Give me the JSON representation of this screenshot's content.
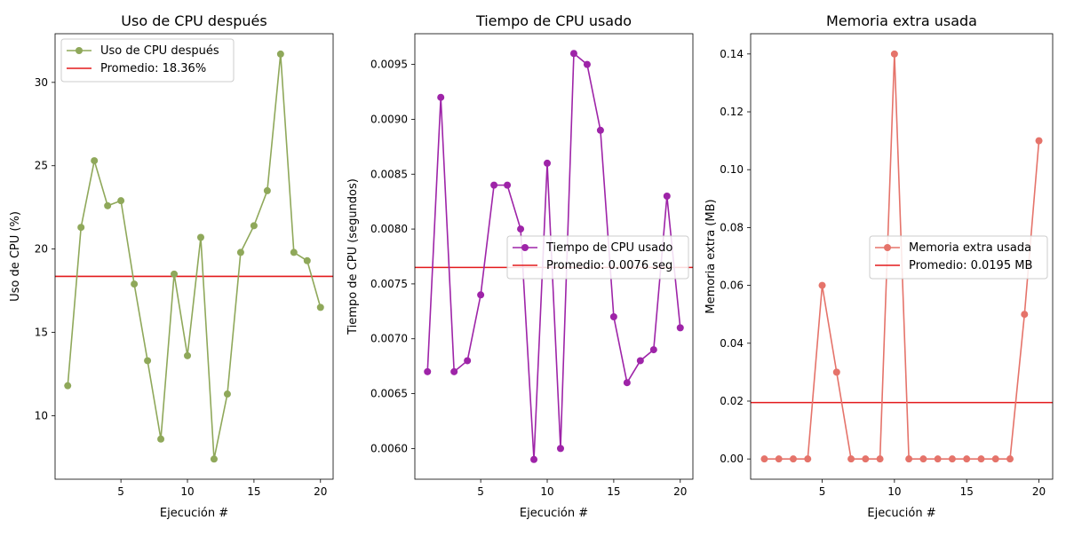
{
  "chart_data": [
    {
      "type": "line",
      "title": "Uso de CPU después",
      "xlabel": "Ejecución #",
      "ylabel": "Uso de CPU (%)",
      "xlim": [
        0.05,
        20.95
      ],
      "ylim": [
        6.19,
        32.92
      ],
      "xticks": [
        5,
        10,
        15,
        20
      ],
      "yticks": [
        10,
        15,
        20,
        25,
        30
      ],
      "ytick_labels": [
        "10",
        "15",
        "20",
        "25",
        "30"
      ],
      "legend_position": "upper left",
      "x": [
        1,
        2,
        3,
        4,
        5,
        6,
        7,
        8,
        9,
        10,
        11,
        12,
        13,
        14,
        15,
        16,
        17,
        18,
        19,
        20
      ],
      "series": [
        {
          "name": "Uso de CPU después",
          "color": "#8fa85a",
          "values": [
            11.8,
            21.3,
            25.3,
            22.6,
            22.9,
            17.9,
            13.3,
            8.6,
            18.5,
            13.6,
            20.7,
            7.4,
            11.3,
            19.8,
            21.4,
            23.5,
            31.7,
            19.8,
            19.3,
            16.5
          ]
        }
      ],
      "reference_line": {
        "label": "Promedio: 18.36%",
        "value": 18.36,
        "color": "#e31a1c"
      }
    },
    {
      "type": "line",
      "title": "Tiempo de CPU usado",
      "xlabel": "Ejecución #",
      "ylabel": "Tiempo de CPU (segundos)",
      "xlim": [
        0.05,
        20.95
      ],
      "ylim": [
        0.00572,
        0.00978
      ],
      "xticks": [
        5,
        10,
        15,
        20
      ],
      "yticks": [
        0.006,
        0.0065,
        0.007,
        0.0075,
        0.008,
        0.0085,
        0.009,
        0.0095
      ],
      "ytick_labels": [
        "0.0060",
        "0.0065",
        "0.0070",
        "0.0075",
        "0.0080",
        "0.0085",
        "0.0090",
        "0.0095"
      ],
      "legend_position": "center right",
      "x": [
        1,
        2,
        3,
        4,
        5,
        6,
        7,
        8,
        9,
        10,
        11,
        12,
        13,
        14,
        15,
        16,
        17,
        18,
        19,
        20
      ],
      "series": [
        {
          "name": "Tiempo de CPU usado",
          "color": "#9e24a8",
          "values": [
            0.0067,
            0.0092,
            0.0067,
            0.0068,
            0.0074,
            0.0084,
            0.0084,
            0.008,
            0.0059,
            0.0086,
            0.006,
            0.0096,
            0.0095,
            0.0089,
            0.0072,
            0.0066,
            0.0068,
            0.0069,
            0.0083,
            0.0071
          ]
        }
      ],
      "reference_line": {
        "label": "Promedio: 0.0076 seg",
        "value": 0.00765,
        "color": "#e31a1c"
      }
    },
    {
      "type": "line",
      "title": "Memoria extra usada",
      "xlabel": "Ejecución #",
      "ylabel": "Memoria extra (MB)",
      "xlim": [
        0.05,
        20.95
      ],
      "ylim": [
        -0.007,
        0.147
      ],
      "xticks": [
        5,
        10,
        15,
        20
      ],
      "yticks": [
        0,
        0.02,
        0.04,
        0.06,
        0.08,
        0.1,
        0.12,
        0.14
      ],
      "ytick_labels": [
        "0.00",
        "0.02",
        "0.04",
        "0.06",
        "0.08",
        "0.10",
        "0.12",
        "0.14"
      ],
      "legend_position": "center right",
      "x": [
        1,
        2,
        3,
        4,
        5,
        6,
        7,
        8,
        9,
        10,
        11,
        12,
        13,
        14,
        15,
        16,
        17,
        18,
        19,
        20
      ],
      "series": [
        {
          "name": "Memoria extra usada",
          "color": "#e5736a",
          "values": [
            0,
            0,
            0,
            0,
            0.06,
            0.03,
            0,
            0,
            0,
            0.14,
            0,
            0,
            0,
            0,
            0,
            0,
            0,
            0,
            0.05,
            0.11
          ]
        }
      ],
      "reference_line": {
        "label": "Promedio: 0.0195 MB",
        "value": 0.0195,
        "color": "#e31a1c"
      }
    }
  ]
}
